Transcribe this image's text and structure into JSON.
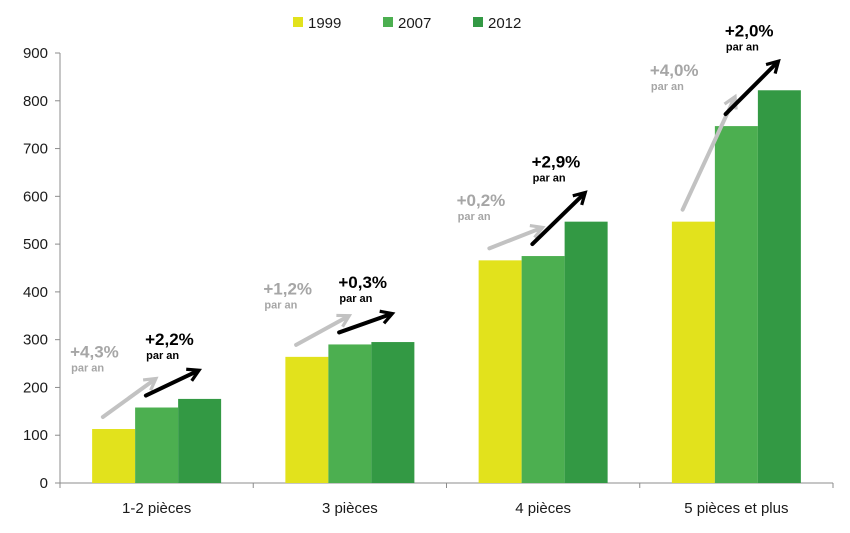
{
  "chart_data": {
    "type": "bar",
    "categories": [
      "1-2 pièces",
      "3 pièces",
      "4 pièces",
      "5 pièces et plus"
    ],
    "series": [
      {
        "name": "1999",
        "values": [
          113,
          264,
          466,
          547
        ],
        "color": "#e2e21c"
      },
      {
        "name": "2007",
        "values": [
          158,
          290,
          475,
          747
        ],
        "color": "#4caf50"
      },
      {
        "name": "2012",
        "values": [
          176,
          295,
          547,
          822
        ],
        "color": "#339944"
      }
    ],
    "ylim": [
      0,
      900
    ],
    "yticks": [
      0,
      100,
      200,
      300,
      400,
      500,
      600,
      700,
      800,
      900
    ],
    "legend_position": "top",
    "grid": false,
    "annotations": [
      {
        "category": 0,
        "period": "1999-2007",
        "pct": "+4,3%",
        "sub": "par an",
        "color": "#b3b3b3"
      },
      {
        "category": 0,
        "period": "2007-2012",
        "pct": "+2,2%",
        "sub": "par an",
        "color": "#000000"
      },
      {
        "category": 1,
        "period": "1999-2007",
        "pct": "+1,2%",
        "sub": "par an",
        "color": "#b3b3b3"
      },
      {
        "category": 1,
        "period": "2007-2012",
        "pct": "+0,3%",
        "sub": "par an",
        "color": "#000000"
      },
      {
        "category": 2,
        "period": "1999-2007",
        "pct": "+0,2%",
        "sub": "par an",
        "color": "#b3b3b3"
      },
      {
        "category": 2,
        "period": "2007-2012",
        "pct": "+2,9%",
        "sub": "par an",
        "color": "#000000"
      },
      {
        "category": 3,
        "period": "1999-2007",
        "pct": "+4,0%",
        "sub": "par an",
        "color": "#b3b3b3"
      },
      {
        "category": 3,
        "period": "2007-2012",
        "pct": "+2,0%",
        "sub": "par an",
        "color": "#000000"
      }
    ]
  }
}
